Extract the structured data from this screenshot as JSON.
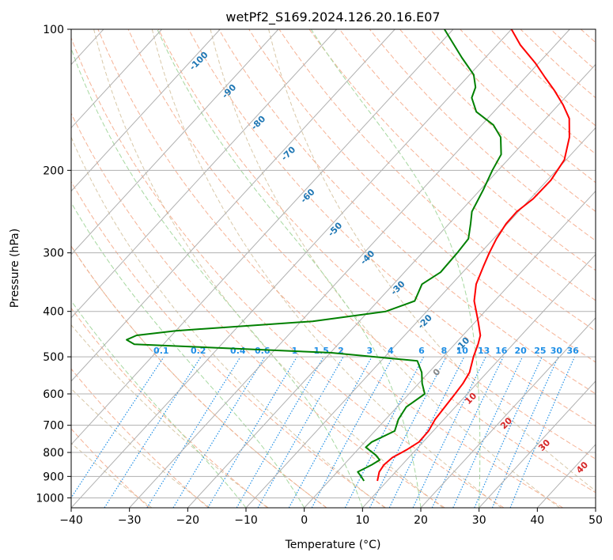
{
  "chart_data": {
    "type": "line",
    "title": "wetPf2_S169.2024.126.20.16.E07",
    "xlabel": "Temperature (°C)",
    "ylabel": "Pressure (hPa)",
    "xlim": [
      -40,
      50
    ],
    "ylim": [
      1050,
      100
    ],
    "y_scale": "log",
    "x_ticks": [
      -40,
      -30,
      -20,
      -10,
      0,
      10,
      20,
      30,
      40,
      50
    ],
    "y_ticks": [
      100,
      200,
      300,
      400,
      500,
      600,
      700,
      800,
      900,
      1000
    ],
    "grid": true,
    "colors": {
      "temperature": "#ff0000",
      "dewpoint": "#008000",
      "isotherm": "#b0b0b0",
      "dry_adiabat": "#f4a582",
      "moist_adiabat": "#a6d8a0",
      "mixing_ratio": "#1f8fe6",
      "saturation_ice": "#1f77b4",
      "saturation_water": "#d62728",
      "theta_e": "#d8c8a8"
    },
    "series": [
      {
        "key": "temperature",
        "points": [
          [
            8.3,
            920
          ],
          [
            7.2,
            880
          ],
          [
            6.9,
            850
          ],
          [
            7.2,
            820
          ],
          [
            8.4,
            790
          ],
          [
            9.3,
            760
          ],
          [
            9.2,
            720
          ],
          [
            8.5,
            680
          ],
          [
            8.2,
            640
          ],
          [
            7.9,
            600
          ],
          [
            7.6,
            570
          ],
          [
            7.0,
            540
          ],
          [
            5.2,
            500
          ],
          [
            4.0,
            470
          ],
          [
            3.0,
            450
          ],
          [
            0.4,
            420
          ],
          [
            -3.5,
            380
          ],
          [
            -5.8,
            350
          ],
          [
            -7.4,
            320
          ],
          [
            -8.5,
            300
          ],
          [
            -9.5,
            280
          ],
          [
            -10.2,
            260
          ],
          [
            -10.3,
            245
          ],
          [
            -9.5,
            230
          ],
          [
            -9.4,
            210
          ],
          [
            -10.3,
            190
          ],
          [
            -13.0,
            170
          ],
          [
            -16.0,
            155
          ],
          [
            -19.2,
            145
          ],
          [
            -23.0,
            135
          ],
          [
            -26.5,
            127
          ],
          [
            -30.6,
            118
          ],
          [
            -36.0,
            108
          ],
          [
            -40.0,
            100
          ]
        ]
      },
      {
        "key": "dewpoint",
        "points": [
          [
            6.0,
            920
          ],
          [
            4.8,
            900
          ],
          [
            3.5,
            880
          ],
          [
            4.8,
            850
          ],
          [
            5.4,
            830
          ],
          [
            3.9,
            810
          ],
          [
            1.0,
            780
          ],
          [
            1.2,
            760
          ],
          [
            3.4,
            720
          ],
          [
            2.2,
            680
          ],
          [
            1.6,
            640
          ],
          [
            2.7,
            600
          ],
          [
            0.6,
            570
          ],
          [
            -1.2,
            540
          ],
          [
            -3.8,
            510
          ],
          [
            -20.0,
            490
          ],
          [
            -55.0,
            470
          ],
          [
            -57.0,
            460
          ],
          [
            -56.0,
            450
          ],
          [
            -50.0,
            440
          ],
          [
            -28.0,
            420
          ],
          [
            -17.0,
            400
          ],
          [
            -13.7,
            380
          ],
          [
            -15.1,
            350
          ],
          [
            -13.8,
            330
          ],
          [
            -14.0,
            300
          ],
          [
            -14.3,
            280
          ],
          [
            -16.3,
            260
          ],
          [
            -18.0,
            245
          ],
          [
            -19.5,
            220
          ],
          [
            -21.0,
            200
          ],
          [
            -22.0,
            185
          ],
          [
            -24.8,
            170
          ],
          [
            -28.0,
            160
          ],
          [
            -33.0,
            150
          ],
          [
            -36.0,
            140
          ],
          [
            -37.0,
            133
          ],
          [
            -39.3,
            125
          ],
          [
            -44.0,
            115
          ],
          [
            -51.5,
            100
          ]
        ]
      }
    ],
    "isotherms_C": [
      -140,
      -130,
      -120,
      -110,
      -100,
      -90,
      -80,
      -70,
      -60,
      -50,
      -40,
      -30,
      -20,
      -10,
      0,
      10,
      20,
      30,
      40,
      50
    ],
    "dry_adiabats_C": [
      -30,
      -20,
      -10,
      0,
      10,
      20,
      30,
      40,
      50,
      60,
      70,
      80,
      90,
      100,
      110,
      120,
      130,
      140,
      150,
      160,
      170,
      180,
      190,
      200
    ],
    "moist_adiabats_C": [
      -10,
      0,
      10,
      20,
      30
    ],
    "mixing_ratio_lines_gkg": [
      "0.1",
      "0.2",
      "0.4",
      "0.6",
      "1",
      "1.5",
      "2",
      "3",
      "4",
      "6",
      "8",
      "10",
      "13",
      "16",
      "20",
      "25",
      "30",
      "36"
    ],
    "ice_saturation_labels": [
      "-100",
      "-90",
      "-80",
      "-70",
      "-60",
      "-50",
      "-40",
      "-30",
      "-20",
      "-10"
    ],
    "water_saturation_labels": [
      "0",
      "10",
      "20",
      "30",
      "40"
    ]
  }
}
